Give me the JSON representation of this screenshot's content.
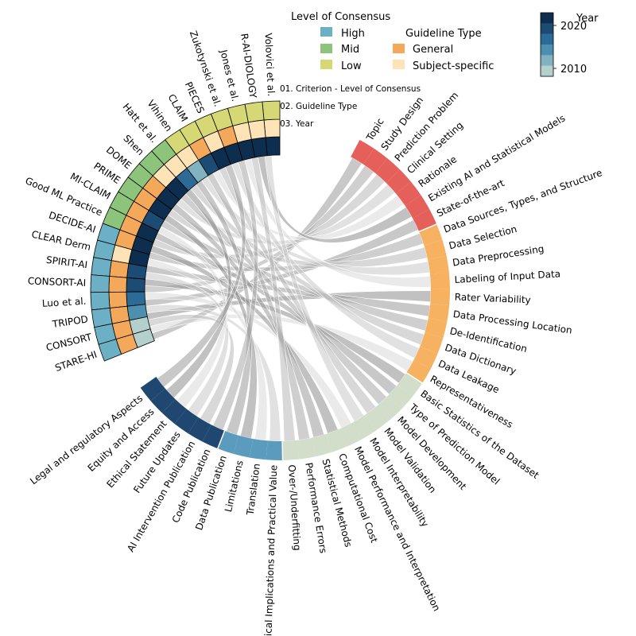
{
  "chart_data": {
    "type": "chord",
    "legend": {
      "consensus_title": "Level of Consensus",
      "consensus_items": [
        {
          "label": "High",
          "color": "#6bb0c4"
        },
        {
          "label": "Mid",
          "color": "#8dc47c"
        },
        {
          "label": "Low",
          "color": "#d5d874"
        }
      ],
      "guideline_title": "Guideline Type",
      "guideline_items": [
        {
          "label": "General",
          "color": "#f4a95a"
        },
        {
          "label": "Subject-specific",
          "color": "#fde3b6"
        }
      ],
      "year_title": "Year",
      "year_ticks": [
        "2020",
        "2010"
      ],
      "year_range": [
        2008,
        2023
      ],
      "year_colors": [
        "#0d2e4e",
        "#1c4b74",
        "#2b6b96",
        "#4c8faf",
        "#80b3bf",
        "#b3d0cc"
      ]
    },
    "ring_labels": [
      "01. Criterion - Level of Consensus",
      "02. Guideline Type",
      "03. Year"
    ],
    "guidelines": [
      {
        "name": "Volovici et al.",
        "consensus": "Low",
        "type": "Subject-specific",
        "year": 2022
      },
      {
        "name": "R-AI-DIOLOGY",
        "consensus": "Low",
        "type": "Subject-specific",
        "year": 2022
      },
      {
        "name": "Jones et al.",
        "consensus": "Low",
        "type": "Subject-specific",
        "year": 2022
      },
      {
        "name": "Zukotynski et al.",
        "consensus": "Low",
        "type": "General",
        "year": 2021
      },
      {
        "name": "PIECES",
        "consensus": "Low",
        "type": "Subject-specific",
        "year": 2021
      },
      {
        "name": "CLAIM",
        "consensus": "Low",
        "type": "General",
        "year": 2020
      },
      {
        "name": "Vihinen",
        "consensus": "Low",
        "type": "Subject-specific",
        "year": 2012
      },
      {
        "name": "Hatt et al.",
        "consensus": "Mid",
        "type": "Subject-specific",
        "year": 2017
      },
      {
        "name": "Shen",
        "consensus": "Mid",
        "type": "Subject-specific",
        "year": 2021
      },
      {
        "name": "DOME",
        "consensus": "Mid",
        "type": "General",
        "year": 2021
      },
      {
        "name": "PRIME",
        "consensus": "Mid",
        "type": "General",
        "year": 2021
      },
      {
        "name": "MI-CLAIM",
        "consensus": "Mid",
        "type": "General",
        "year": 2020
      },
      {
        "name": "Good ML Practice",
        "consensus": "Mid",
        "type": "General",
        "year": 2021
      },
      {
        "name": "DECIDE-AI",
        "consensus": "High",
        "type": "General",
        "year": 2022
      },
      {
        "name": "CLEAR Derm",
        "consensus": "High",
        "type": "Subject-specific",
        "year": 2021
      },
      {
        "name": "SPIRIT-AI",
        "consensus": "High",
        "type": "General",
        "year": 2020
      },
      {
        "name": "CONSORT-AI",
        "consensus": "High",
        "type": "General",
        "year": 2020
      },
      {
        "name": "Luo et al.",
        "consensus": "High",
        "type": "General",
        "year": 2016
      },
      {
        "name": "TRIPOD",
        "consensus": "High",
        "type": "General",
        "year": 2015
      },
      {
        "name": "CONSORT",
        "consensus": "High",
        "type": "General",
        "year": 2010
      },
      {
        "name": "STARE-HI",
        "consensus": "High",
        "type": "General",
        "year": 2009
      }
    ],
    "criteria": [
      {
        "label": "Topic",
        "group": "Study Design"
      },
      {
        "label": "Study Design",
        "group": "Study Design"
      },
      {
        "label": "Prediction Problem",
        "group": "Study Design"
      },
      {
        "label": "Clinical Setting",
        "group": "Study Design"
      },
      {
        "label": "Rationale",
        "group": "Study Design"
      },
      {
        "label": "Existing AI and Statistical Models",
        "group": "Study Design"
      },
      {
        "label": "State-of-the-art",
        "group": "Study Design"
      },
      {
        "label": "Data Sources, Types, and Structure",
        "group": "Data"
      },
      {
        "label": "Data Selection",
        "group": "Data"
      },
      {
        "label": "Data Preprocessing",
        "group": "Data"
      },
      {
        "label": "Labeling of Input Data",
        "group": "Data"
      },
      {
        "label": "Rater Variability",
        "group": "Data"
      },
      {
        "label": "Data Processing Location",
        "group": "Data"
      },
      {
        "label": "De-Identification",
        "group": "Data"
      },
      {
        "label": "Data Dictionary",
        "group": "Data"
      },
      {
        "label": "Data Leakage",
        "group": "Data"
      },
      {
        "label": "Representativeness",
        "group": "Data"
      },
      {
        "label": "Basic Statistics of the Dataset",
        "group": "Model"
      },
      {
        "label": "Type of Prediction Model",
        "group": "Model"
      },
      {
        "label": "Model Development",
        "group": "Model"
      },
      {
        "label": "Model Validation",
        "group": "Model"
      },
      {
        "label": "Model Interpretability",
        "group": "Model"
      },
      {
        "label": "Model Performance and Interpretation",
        "group": "Model"
      },
      {
        "label": "Computational Cost",
        "group": "Model"
      },
      {
        "label": "Statistical Methods",
        "group": "Model"
      },
      {
        "label": "Performance Errors",
        "group": "Model"
      },
      {
        "label": "Over-/Underfitting",
        "group": "Model"
      },
      {
        "label": "Clinical Implications and Practical Value",
        "group": "Reporting"
      },
      {
        "label": "Translation",
        "group": "Reporting"
      },
      {
        "label": "Limitations",
        "group": "Reporting"
      },
      {
        "label": "Data Publication",
        "group": "Reporting"
      },
      {
        "label": "Code Publication",
        "group": "Ethics"
      },
      {
        "label": "AI Intervention Publication",
        "group": "Ethics"
      },
      {
        "label": "Future Updates",
        "group": "Ethics"
      },
      {
        "label": "Ethical Statement",
        "group": "Ethics"
      },
      {
        "label": "Equity and Access",
        "group": "Ethics"
      },
      {
        "label": "Legal and regulatory Aspects",
        "group": "Ethics"
      }
    ],
    "group_colors": {
      "Study Design": "#e5605a",
      "Data": "#f6b261",
      "Model": "#d2dec9",
      "Reporting": "#5b9bbd",
      "Ethics": "#1f4770"
    },
    "consensus_colors": {
      "High": "#6bb0c4",
      "Mid": "#8dc47c",
      "Low": "#d5d874"
    },
    "type_colors": {
      "General": "#f4a95a",
      "Subject-specific": "#fde3b6"
    }
  }
}
